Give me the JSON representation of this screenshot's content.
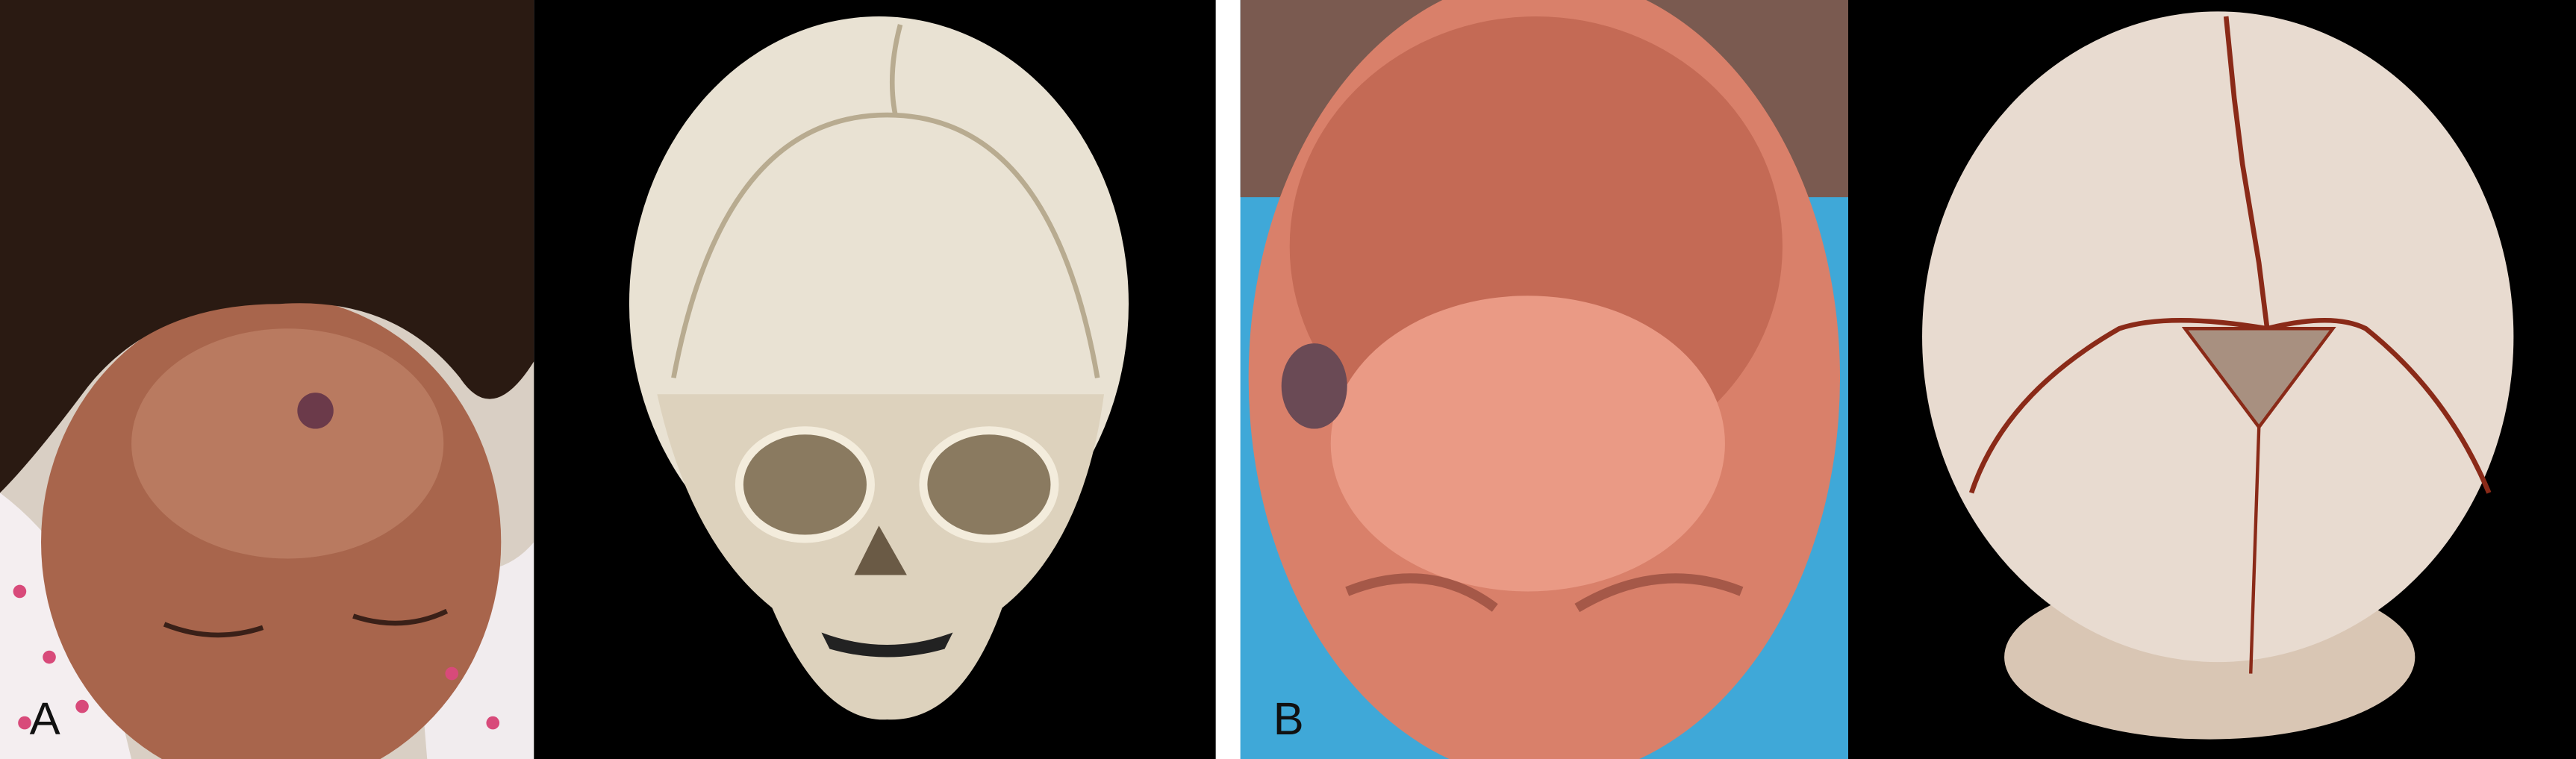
{
  "panels": [
    {
      "label": "A"
    },
    {
      "label": "B"
    }
  ]
}
